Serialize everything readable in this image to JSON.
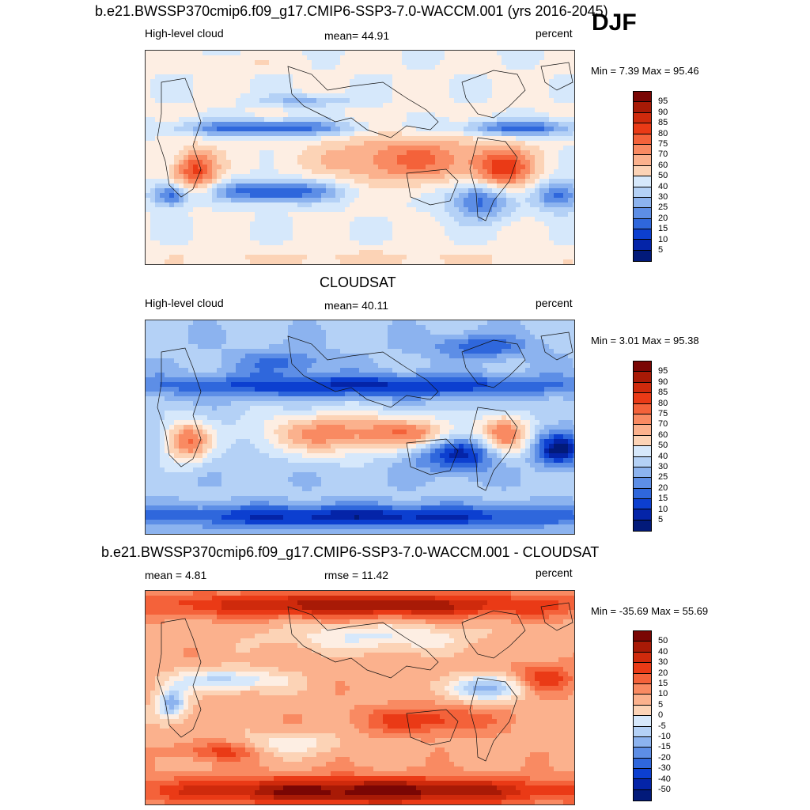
{
  "season": "DJF",
  "colors": {
    "pos": [
      "#fdeee3",
      "#fcd3b6",
      "#fbb18d",
      "#f98a62",
      "#f4623a",
      "#ea3a16",
      "#cf2a0c",
      "#a81a06",
      "#7a0604"
    ],
    "neg": [
      "#d6e8fb",
      "#b4d1f6",
      "#8cb3ef",
      "#5d8ee6",
      "#2f67dc",
      "#0c3fd0",
      "#0424a8",
      "#021a7a",
      "#000a55"
    ]
  },
  "panels": [
    {
      "title": "b.e21.BWSSP370cmip6.f09_g17.CMIP6-SSP3-7.0-WACCM.001 (yrs 2016-2045)",
      "left_label": "High-level cloud",
      "center_label": "mean=  44.91",
      "right_label": "percent",
      "minmax": "Min =   7.39 Max =  95.46",
      "map_name": "model-map",
      "colorbar_labels": [
        "95",
        "90",
        "85",
        "80",
        "75",
        "70",
        "60",
        "50",
        "40",
        "30",
        "25",
        "20",
        "15",
        "10",
        "5"
      ]
    },
    {
      "title": "CLOUDSAT",
      "left_label": "High-level cloud",
      "center_label": "mean=  40.11",
      "right_label": "percent",
      "minmax": "Min =   3.01 Max =  95.38",
      "map_name": "obs-map",
      "colorbar_labels": [
        "95",
        "90",
        "85",
        "80",
        "75",
        "70",
        "60",
        "50",
        "40",
        "30",
        "25",
        "20",
        "15",
        "10",
        "5"
      ]
    },
    {
      "title": "b.e21.BWSSP370cmip6.f09_g17.CMIP6-SSP3-7.0-WACCM.001 - CLOUDSAT",
      "left_label": "mean =   4.81",
      "center_label": "rmse =  11.42",
      "right_label": "percent",
      "minmax": "Min = -35.69 Max =  55.69",
      "map_name": "diff-map",
      "colorbar_labels": [
        "50",
        "40",
        "30",
        "20",
        "15",
        "10",
        "5",
        "0",
        "-5",
        "-10",
        "-15",
        "-20",
        "-30",
        "-40",
        "-50"
      ]
    }
  ]
}
